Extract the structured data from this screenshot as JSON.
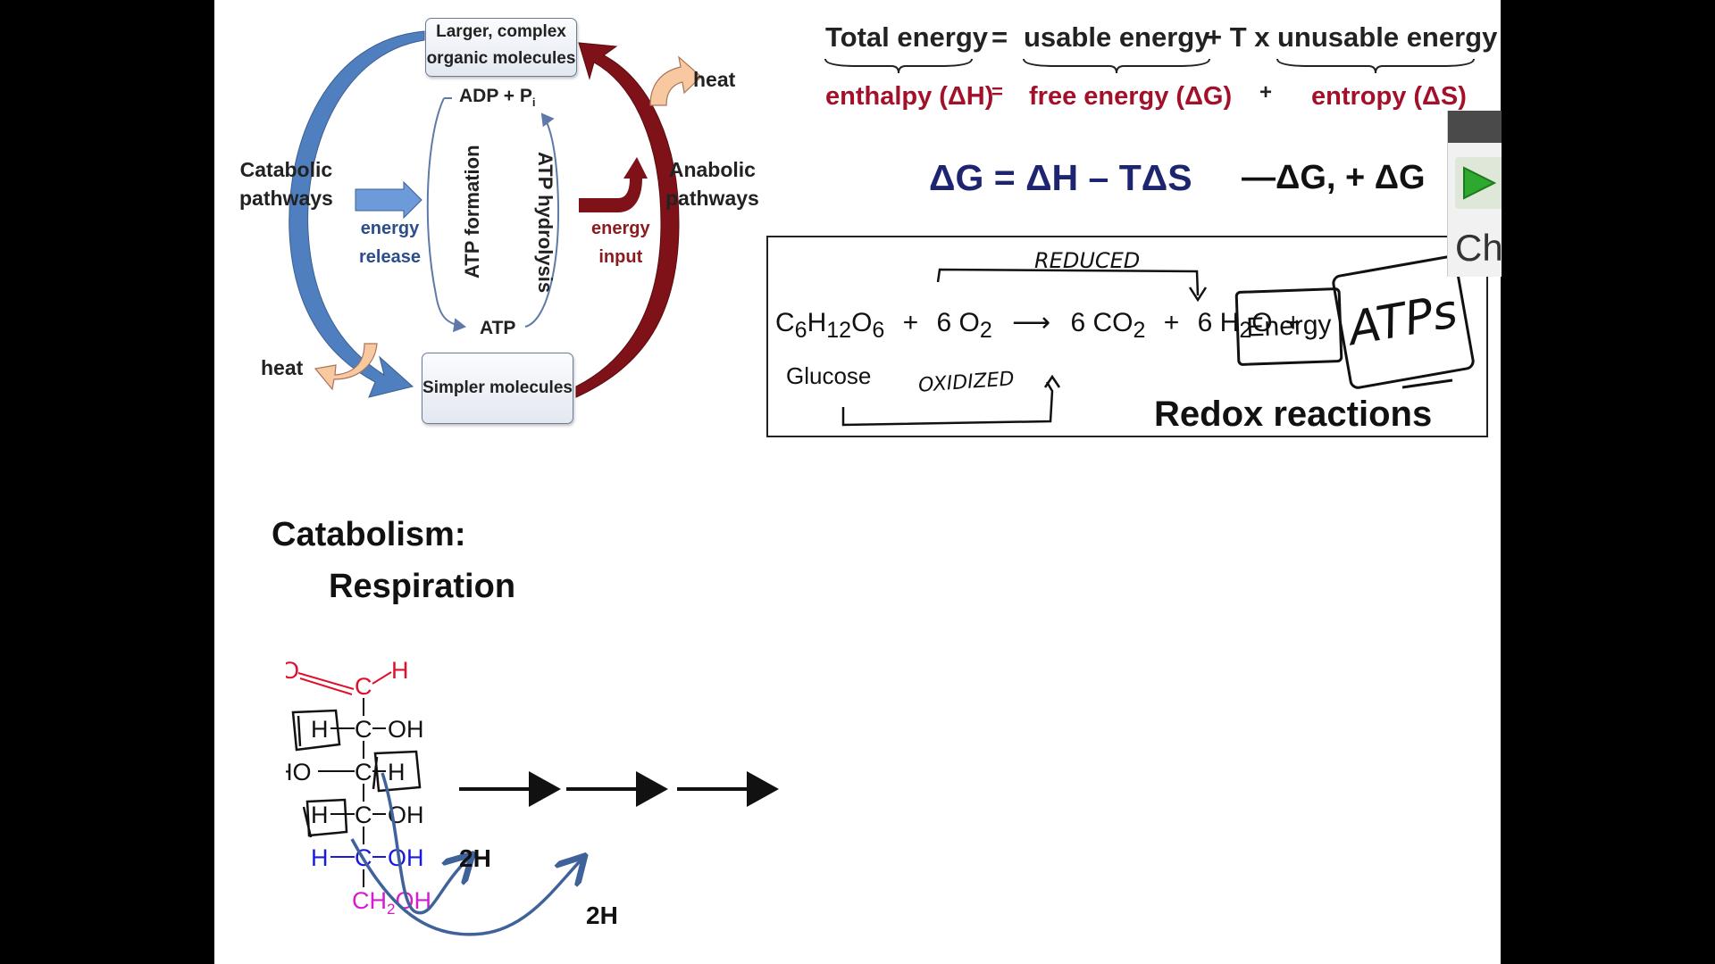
{
  "cycle": {
    "top_box": [
      "Larger, complex",
      "organic molecules"
    ],
    "bottom_box": "Simpler molecules",
    "catabolic_label": [
      "Catabolic",
      "pathways"
    ],
    "anabolic_label": [
      "Anabolic",
      "pathways"
    ],
    "energy_release": [
      "energy",
      "release"
    ],
    "energy_input": [
      "energy",
      "input"
    ],
    "adp": "ADP + P",
    "adp_sub": "i",
    "atp_bottom": "ATP",
    "atp_formation": "ATP formation",
    "atp_hydrolysis": "ATP hydrolysis",
    "heat_top": "heat",
    "heat_bottom": "heat"
  },
  "energy_eq": {
    "total": "Total energy",
    "eq1": "=",
    "usable": "usable energy",
    "plus_tx": "+ T x",
    "unusable": "unusable energy",
    "enthalpy": "enthalpy (ΔH)",
    "eq2": "=",
    "free": "free energy (ΔG)",
    "plus2": "+",
    "entropy": "entropy (ΔS)"
  },
  "gibbs": {
    "formula": "ΔG = ΔH – TΔS",
    "signs": "—ΔG, + ΔG"
  },
  "redox": {
    "glucose_label": "Glucose",
    "plus": "+",
    "energy": "Energy",
    "title": "Redox reactions",
    "note_reduced": "REDUCED",
    "note_oxidized": "OXIDIZED",
    "note_atps": "ATPs"
  },
  "catabolism": {
    "title": "Catabolism:",
    "subtitle": "Respiration"
  },
  "glucose_structure": {
    "label_2h_1": "2H",
    "label_2h_2": "2H"
  },
  "side_panel": {
    "label": "Ch"
  },
  "colors": {
    "catabolic_blue": "#4f7fbe",
    "anabolic_red": "#7e1218",
    "eq_red": "#a2102a",
    "eq_navy": "#1d2470",
    "carbonyl": "#e0102c",
    "c5": "#1a1adb",
    "c6": "#d41dd0",
    "play_green": "#2ea82e"
  }
}
